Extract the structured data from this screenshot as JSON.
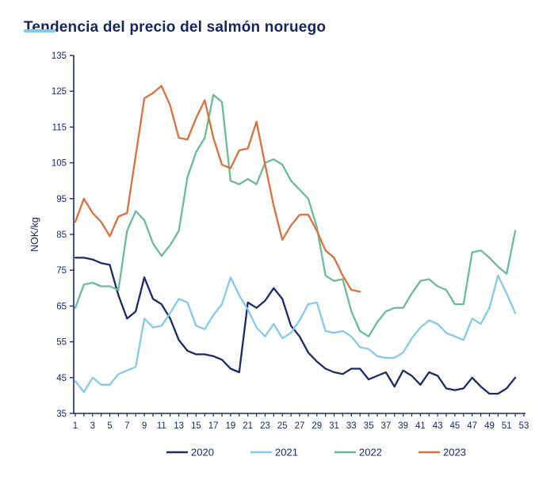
{
  "title": "Tendencia del precio del salmón noruego",
  "accent": {
    "title_color": "#13265f",
    "underline_color": "#7ec9ec",
    "axis_color": "#1b2a6b",
    "background": "#ffffff"
  },
  "chart_data": {
    "type": "line",
    "title": "Tendencia del precio del salmón noruego",
    "xlabel": "",
    "ylabel": "NOK/kg",
    "ylim": [
      35,
      135
    ],
    "y_ticks": [
      35,
      45,
      55,
      65,
      75,
      85,
      95,
      105,
      115,
      125,
      135
    ],
    "x_range": [
      1,
      53
    ],
    "x_tick_labels": [
      "1",
      "3",
      "5",
      "7",
      "9",
      "11",
      "13",
      "15",
      "17",
      "19",
      "21",
      "23",
      "25",
      "27",
      "29",
      "31",
      "33",
      "35",
      "37",
      "39",
      "41",
      "43",
      "45",
      "47",
      "49",
      "51",
      "53"
    ],
    "x_unit": "week",
    "grid": false,
    "legend_position": "bottom-center",
    "series": [
      {
        "name": "2020",
        "color": "#1a2a6b",
        "start_week": 1,
        "values": [
          78.5,
          78.5,
          78,
          77,
          76.5,
          68,
          61.5,
          63.5,
          73,
          67,
          65.5,
          61.5,
          55.5,
          52.5,
          51.5,
          51.5,
          51,
          50,
          47.5,
          46.5,
          66,
          64.5,
          66.5,
          70,
          67,
          59.5,
          56.5,
          52,
          49.5,
          47.5,
          46.5,
          46,
          47.5,
          47.5,
          44.5,
          45.5,
          46.5,
          42.5,
          47,
          45.5,
          43,
          46.5,
          45.5,
          42,
          41.5,
          42,
          45,
          42.5,
          40.5,
          40.5,
          42,
          45
        ]
      },
      {
        "name": "2021",
        "color": "#85c9ed",
        "start_week": 1,
        "values": [
          44,
          41,
          45,
          43,
          43,
          46,
          47,
          48,
          61.5,
          59,
          59.5,
          63,
          67,
          66,
          59.5,
          58.5,
          62.5,
          65.5,
          73,
          68,
          64,
          59,
          56.5,
          60,
          56,
          57.5,
          61,
          65.5,
          66,
          58,
          57.5,
          58,
          56.5,
          53.5,
          53,
          51,
          50.5,
          50.5,
          52,
          56,
          59,
          61,
          60,
          57.5,
          56.5,
          55.5,
          61.5,
          60,
          64.5,
          73.5,
          68.5,
          63
        ]
      },
      {
        "name": "2022",
        "color": "#6abb98",
        "start_week": 1,
        "values": [
          64.5,
          71,
          71.5,
          70.5,
          70.5,
          69.5,
          86,
          91.5,
          89,
          82.5,
          79,
          82,
          86,
          101,
          108,
          112,
          124,
          122,
          100,
          99,
          100.5,
          99,
          105,
          106,
          104.5,
          100,
          97.5,
          95,
          87,
          73.5,
          72,
          72.5,
          63.5,
          58,
          56.5,
          60.5,
          63.5,
          64.5,
          64.5,
          68.5,
          72,
          72.5,
          70.5,
          69.5,
          65.5,
          65.5,
          80,
          80.5,
          78.5,
          76,
          74,
          86
        ]
      },
      {
        "name": "2023",
        "color": "#d8713e",
        "start_week": 1,
        "values": [
          88.5,
          95,
          91,
          88.5,
          84.5,
          90,
          91,
          107,
          123,
          124.5,
          126.5,
          121,
          112,
          111.5,
          117.5,
          122.5,
          112,
          104.5,
          103.5,
          108.5,
          109,
          116.5,
          104.5,
          93,
          83.5,
          87.5,
          90.5,
          90.5,
          86,
          80.5,
          78.5,
          73.5,
          69.5,
          69
        ]
      }
    ]
  },
  "legend": {
    "items": [
      {
        "label": "2020",
        "color": "#1a2a6b"
      },
      {
        "label": "2021",
        "color": "#85c9ed"
      },
      {
        "label": "2022",
        "color": "#6abb98"
      },
      {
        "label": "2023",
        "color": "#d8713e"
      }
    ]
  }
}
